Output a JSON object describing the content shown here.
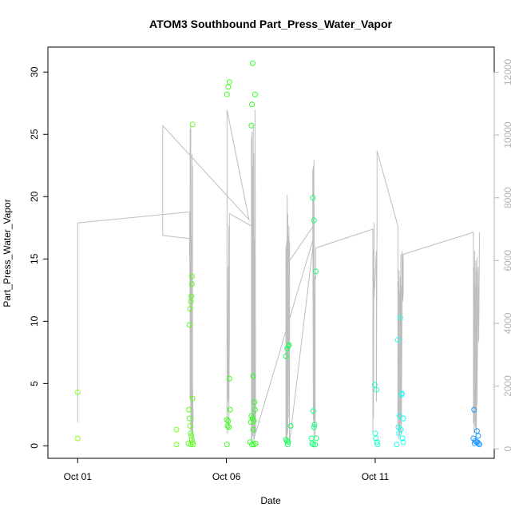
{
  "chart_data": {
    "type": "scatter",
    "title": "ATOM3 Southbound Part_Press_Water_Vapor",
    "xlabel": "Date",
    "ylabel": "Part_Press_Water_Vapor",
    "x_ticks": [
      {
        "day": 1,
        "label": "Oct 01"
      },
      {
        "day": 6,
        "label": "Oct 06"
      },
      {
        "day": 11,
        "label": "Oct 11"
      }
    ],
    "xlim_days": [
      0.0,
      15.0
    ],
    "ylim": [
      -1.0,
      32.0
    ],
    "y_ticks": [
      0,
      5,
      10,
      15,
      20,
      25,
      30
    ],
    "y2lim": [
      -300,
      12800
    ],
    "y2_ticks": [
      0,
      2000,
      4000,
      6000,
      8000,
      10000,
      12000
    ],
    "colors": {
      "line": "#bebebe",
      "right_axis": "#b4b4b4"
    },
    "series": [
      {
        "kind": "points",
        "marker": "open-circle",
        "points": [
          {
            "x": 1.0,
            "y": 4.3,
            "color": "#8cff1a"
          },
          {
            "x": 1.0,
            "y": 0.6,
            "color": "#8cff1a"
          },
          {
            "x": 4.32,
            "y": 1.3,
            "color": "#76ff1a"
          },
          {
            "x": 4.32,
            "y": 0.1,
            "color": "#76ff1a"
          },
          {
            "x": 4.74,
            "y": 2.9,
            "color": "#5cff1a"
          },
          {
            "x": 4.76,
            "y": 9.7,
            "color": "#5cff1a"
          },
          {
            "x": 4.78,
            "y": 11.0,
            "color": "#5cff1a"
          },
          {
            "x": 4.8,
            "y": 11.6,
            "color": "#5cff1a"
          },
          {
            "x": 4.82,
            "y": 12.0,
            "color": "#5cff1a"
          },
          {
            "x": 4.84,
            "y": 13.0,
            "color": "#5cff1a"
          },
          {
            "x": 4.84,
            "y": 13.6,
            "color": "#5cff1a"
          },
          {
            "x": 4.86,
            "y": 25.8,
            "color": "#5cff1a"
          },
          {
            "x": 4.86,
            "y": 3.8,
            "color": "#5cff1a"
          },
          {
            "x": 4.76,
            "y": 2.2,
            "color": "#5cff1a"
          },
          {
            "x": 4.78,
            "y": 1.6,
            "color": "#5cff1a"
          },
          {
            "x": 4.8,
            "y": 1.0,
            "color": "#5cff1a"
          },
          {
            "x": 4.82,
            "y": 0.8,
            "color": "#5cff1a"
          },
          {
            "x": 4.84,
            "y": 0.5,
            "color": "#5cff1a"
          },
          {
            "x": 4.86,
            "y": 0.3,
            "color": "#5cff1a"
          },
          {
            "x": 4.72,
            "y": 0.2,
            "color": "#5cff1a"
          },
          {
            "x": 4.8,
            "y": 0.1,
            "color": "#5cff1a"
          },
          {
            "x": 4.88,
            "y": 0.1,
            "color": "#5cff1a"
          },
          {
            "x": 6.02,
            "y": 28.2,
            "color": "#3fff1a"
          },
          {
            "x": 6.06,
            "y": 28.8,
            "color": "#3fff1a"
          },
          {
            "x": 6.1,
            "y": 29.2,
            "color": "#3fff1a"
          },
          {
            "x": 6.1,
            "y": 5.4,
            "color": "#3fff1a"
          },
          {
            "x": 6.12,
            "y": 2.9,
            "color": "#3fff1a"
          },
          {
            "x": 6.02,
            "y": 2.1,
            "color": "#3fff1a"
          },
          {
            "x": 6.06,
            "y": 2.0,
            "color": "#3fff1a"
          },
          {
            "x": 6.04,
            "y": 1.6,
            "color": "#3fff1a"
          },
          {
            "x": 6.08,
            "y": 1.5,
            "color": "#3fff1a"
          },
          {
            "x": 6.02,
            "y": 0.1,
            "color": "#3fff1a"
          },
          {
            "x": 6.88,
            "y": 30.7,
            "color": "#2bff22"
          },
          {
            "x": 6.96,
            "y": 28.2,
            "color": "#2bff22"
          },
          {
            "x": 6.86,
            "y": 27.4,
            "color": "#2bff22"
          },
          {
            "x": 6.84,
            "y": 25.7,
            "color": "#2bff22"
          },
          {
            "x": 6.9,
            "y": 5.6,
            "color": "#2bff22"
          },
          {
            "x": 6.94,
            "y": 3.5,
            "color": "#2bff22"
          },
          {
            "x": 6.96,
            "y": 2.9,
            "color": "#2bff22"
          },
          {
            "x": 6.84,
            "y": 2.4,
            "color": "#2bff22"
          },
          {
            "x": 6.88,
            "y": 2.2,
            "color": "#2bff22"
          },
          {
            "x": 6.82,
            "y": 1.9,
            "color": "#2bff22"
          },
          {
            "x": 6.92,
            "y": 2.0,
            "color": "#2bff22"
          },
          {
            "x": 6.9,
            "y": 1.3,
            "color": "#2bff22"
          },
          {
            "x": 6.8,
            "y": 0.3,
            "color": "#2bff22"
          },
          {
            "x": 6.86,
            "y": 0.1,
            "color": "#2bff22"
          },
          {
            "x": 6.92,
            "y": 0.1,
            "color": "#2bff22"
          },
          {
            "x": 6.98,
            "y": 0.2,
            "color": "#2bff22"
          },
          {
            "x": 8.0,
            "y": 7.2,
            "color": "#1aff5c"
          },
          {
            "x": 8.04,
            "y": 7.8,
            "color": "#1aff5c"
          },
          {
            "x": 8.08,
            "y": 8.0,
            "color": "#1aff5c"
          },
          {
            "x": 8.1,
            "y": 8.1,
            "color": "#1aff5c"
          },
          {
            "x": 8.16,
            "y": 1.6,
            "color": "#1aff5c"
          },
          {
            "x": 8.0,
            "y": 0.5,
            "color": "#1aff5c"
          },
          {
            "x": 8.04,
            "y": 0.4,
            "color": "#1aff5c"
          },
          {
            "x": 8.08,
            "y": 0.3,
            "color": "#1aff5c"
          },
          {
            "x": 8.06,
            "y": 0.1,
            "color": "#1aff5c"
          },
          {
            "x": 8.9,
            "y": 19.9,
            "color": "#1aff7a"
          },
          {
            "x": 8.94,
            "y": 18.1,
            "color": "#1aff7a"
          },
          {
            "x": 9.0,
            "y": 14.0,
            "color": "#1aff7a"
          },
          {
            "x": 8.92,
            "y": 2.8,
            "color": "#1aff7a"
          },
          {
            "x": 8.96,
            "y": 1.7,
            "color": "#1aff7a"
          },
          {
            "x": 8.94,
            "y": 1.5,
            "color": "#1aff7a"
          },
          {
            "x": 8.86,
            "y": 0.6,
            "color": "#1aff7a"
          },
          {
            "x": 9.02,
            "y": 0.6,
            "color": "#1aff7a"
          },
          {
            "x": 8.88,
            "y": 0.2,
            "color": "#1aff7a"
          },
          {
            "x": 8.92,
            "y": 0.1,
            "color": "#1aff7a"
          },
          {
            "x": 8.98,
            "y": 0.1,
            "color": "#1aff7a"
          },
          {
            "x": 10.98,
            "y": 4.9,
            "color": "#1affd1"
          },
          {
            "x": 11.04,
            "y": 4.5,
            "color": "#1affd1"
          },
          {
            "x": 11.0,
            "y": 1.0,
            "color": "#1affd1"
          },
          {
            "x": 11.02,
            "y": 0.6,
            "color": "#1affd1"
          },
          {
            "x": 11.06,
            "y": 0.3,
            "color": "#1affd1"
          },
          {
            "x": 11.08,
            "y": 0.1,
            "color": "#1affd1"
          },
          {
            "x": 11.76,
            "y": 8.5,
            "color": "#1afff0"
          },
          {
            "x": 11.84,
            "y": 10.3,
            "color": "#1afff0"
          },
          {
            "x": 11.88,
            "y": 4.1,
            "color": "#1afff0"
          },
          {
            "x": 11.9,
            "y": 4.2,
            "color": "#1afff0"
          },
          {
            "x": 11.82,
            "y": 2.4,
            "color": "#1afff0"
          },
          {
            "x": 11.94,
            "y": 2.2,
            "color": "#1afff0"
          },
          {
            "x": 11.78,
            "y": 1.5,
            "color": "#1afff0"
          },
          {
            "x": 11.86,
            "y": 1.3,
            "color": "#1afff0"
          },
          {
            "x": 11.8,
            "y": 1.0,
            "color": "#1afff0"
          },
          {
            "x": 11.92,
            "y": 0.6,
            "color": "#1afff0"
          },
          {
            "x": 11.94,
            "y": 0.3,
            "color": "#1afff0"
          },
          {
            "x": 11.72,
            "y": 0.1,
            "color": "#1afff0"
          },
          {
            "x": 14.32,
            "y": 2.9,
            "color": "#1a99ff"
          },
          {
            "x": 14.42,
            "y": 1.2,
            "color": "#1a99ff"
          },
          {
            "x": 14.46,
            "y": 0.8,
            "color": "#1a99ff"
          },
          {
            "x": 14.3,
            "y": 0.6,
            "color": "#1a99ff"
          },
          {
            "x": 14.36,
            "y": 0.4,
            "color": "#1a99ff"
          },
          {
            "x": 14.4,
            "y": 0.3,
            "color": "#1a99ff"
          },
          {
            "x": 14.44,
            "y": 0.3,
            "color": "#1a99ff"
          },
          {
            "x": 14.48,
            "y": 0.2,
            "color": "#1a99ff"
          },
          {
            "x": 14.5,
            "y": 0.1,
            "color": "#1a99ff"
          },
          {
            "x": 14.34,
            "y": 0.2,
            "color": "#1a99ff"
          }
        ]
      },
      {
        "kind": "line",
        "axis": "right",
        "color": "#bebebe",
        "points": [
          [
            1.0,
            850
          ],
          [
            1.0,
            7200
          ],
          [
            4.76,
            7550
          ],
          [
            4.76,
            6750
          ],
          [
            4.8,
            1200
          ],
          [
            4.78,
            3500
          ],
          [
            4.78,
            10200
          ],
          [
            4.78,
            1600
          ],
          [
            4.8,
            10300
          ],
          [
            4.8,
            400
          ],
          [
            4.82,
            6800
          ],
          [
            4.82,
            600
          ],
          [
            4.84,
            9400
          ],
          [
            4.84,
            500
          ],
          [
            4.86,
            3000
          ],
          [
            4.86,
            9000
          ],
          [
            4.86,
            200
          ],
          [
            4.88,
            1000
          ],
          [
            4.76,
            6700
          ],
          [
            3.86,
            6800
          ],
          [
            3.86,
            10300
          ],
          [
            6.76,
            7300
          ],
          [
            6.02,
            10800
          ],
          [
            6.02,
            500
          ],
          [
            6.06,
            5800
          ],
          [
            6.06,
            1500
          ],
          [
            6.08,
            7100
          ],
          [
            6.08,
            600
          ],
          [
            6.1,
            4000
          ],
          [
            6.1,
            7500
          ],
          [
            6.84,
            7100
          ],
          [
            6.84,
            200
          ],
          [
            6.84,
            9900
          ],
          [
            6.86,
            300
          ],
          [
            6.86,
            10100
          ],
          [
            6.88,
            400
          ],
          [
            6.88,
            9000
          ],
          [
            6.9,
            500
          ],
          [
            6.9,
            10300
          ],
          [
            6.92,
            200
          ],
          [
            6.92,
            9400
          ],
          [
            6.94,
            300
          ],
          [
            6.94,
            6700
          ],
          [
            6.96,
            400
          ],
          [
            6.96,
            10800
          ],
          [
            6.98,
            500
          ],
          [
            8.92,
            6700
          ],
          [
            8.92,
            7100
          ],
          [
            7.98,
            5800
          ],
          [
            8.08,
            6000
          ],
          [
            8.08,
            6800
          ],
          [
            8.0,
            6400
          ],
          [
            8.0,
            200
          ],
          [
            8.02,
            6600
          ],
          [
            8.02,
            400
          ],
          [
            8.04,
            8100
          ],
          [
            8.04,
            300
          ],
          [
            8.06,
            7500
          ],
          [
            8.06,
            500
          ],
          [
            8.1,
            7100
          ],
          [
            8.1,
            1000
          ],
          [
            8.12,
            6600
          ],
          [
            8.12,
            200
          ],
          [
            8.9,
            6400
          ],
          [
            8.9,
            8900
          ],
          [
            8.92,
            900
          ],
          [
            8.92,
            9000
          ],
          [
            8.94,
            400
          ],
          [
            8.94,
            9200
          ],
          [
            8.96,
            800
          ],
          [
            8.96,
            4800
          ],
          [
            8.98,
            400
          ],
          [
            8.98,
            5500
          ],
          [
            9.0,
            5400
          ],
          [
            9.0,
            6400
          ],
          [
            10.92,
            7000
          ],
          [
            10.92,
            500
          ],
          [
            10.94,
            6300
          ],
          [
            10.94,
            1000
          ],
          [
            10.96,
            7200
          ],
          [
            10.96,
            4800
          ],
          [
            11.0,
            5500
          ],
          [
            11.04,
            6300
          ],
          [
            11.04,
            1500
          ],
          [
            11.06,
            7200
          ],
          [
            11.06,
            9500
          ],
          [
            11.76,
            7100
          ],
          [
            11.76,
            600
          ],
          [
            11.78,
            5300
          ],
          [
            11.78,
            1000
          ],
          [
            11.8,
            5700
          ],
          [
            11.8,
            300
          ],
          [
            11.82,
            5000
          ],
          [
            11.82,
            400
          ],
          [
            11.84,
            5500
          ],
          [
            11.84,
            500
          ],
          [
            11.86,
            6200
          ],
          [
            11.86,
            800
          ],
          [
            11.88,
            5200
          ],
          [
            11.88,
            500
          ],
          [
            11.9,
            4300
          ],
          [
            11.9,
            6300
          ],
          [
            11.92,
            5900
          ],
          [
            11.92,
            4700
          ],
          [
            11.94,
            4900
          ],
          [
            11.94,
            6200
          ],
          [
            14.3,
            6900
          ],
          [
            14.3,
            800
          ],
          [
            14.32,
            5800
          ],
          [
            14.32,
            500
          ],
          [
            14.34,
            6300
          ],
          [
            14.34,
            900
          ],
          [
            14.36,
            5200
          ],
          [
            14.36,
            700
          ],
          [
            14.38,
            6000
          ],
          [
            14.38,
            600
          ],
          [
            14.4,
            5700
          ],
          [
            14.4,
            500
          ],
          [
            14.42,
            6100
          ],
          [
            14.42,
            1400
          ],
          [
            14.46,
            5800
          ],
          [
            14.48,
            3400
          ],
          [
            14.5,
            6400
          ],
          [
            14.5,
            6900
          ]
        ]
      }
    ]
  }
}
